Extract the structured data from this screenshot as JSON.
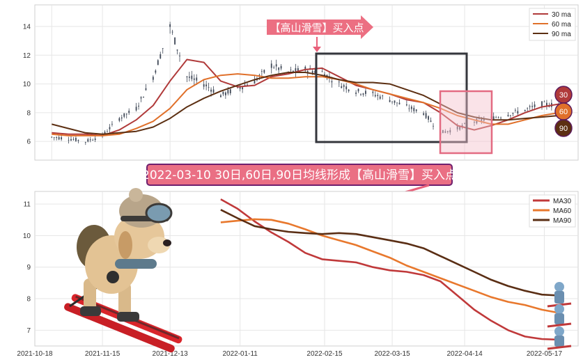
{
  "chart_data": [
    {
      "type": "line",
      "panel": "price",
      "ylim": [
        4.7,
        15.5
      ],
      "yticks": [
        6,
        8,
        10,
        12,
        14
      ],
      "grid": true,
      "legend_position": "top-right",
      "x_dates": [
        "2021-10-25",
        "2021-11-01",
        "2021-11-08",
        "2021-11-15",
        "2021-11-22",
        "2021-11-29",
        "2021-12-06",
        "2021-12-13",
        "2021-12-20",
        "2021-12-27",
        "2022-01-03",
        "2022-01-10",
        "2022-01-17",
        "2022-01-24",
        "2022-01-31",
        "2022-02-07",
        "2022-02-14",
        "2022-02-21",
        "2022-02-28",
        "2022-03-07",
        "2022-03-14",
        "2022-03-21",
        "2022-03-28",
        "2022-04-04",
        "2022-04-11",
        "2022-04-18",
        "2022-04-25",
        "2022-05-02",
        "2022-05-09",
        "2022-05-16",
        "2022-05-23"
      ],
      "close_price": [
        6.3,
        6.2,
        6.0,
        6.4,
        7.6,
        8.3,
        10.5,
        14.0,
        10.5,
        10.0,
        9.2,
        9.7,
        10.2,
        11.3,
        10.8,
        11.0,
        10.8,
        10.0,
        9.5,
        9.3,
        8.9,
        8.4,
        8.0,
        6.6,
        6.9,
        7.4,
        7.6,
        7.9,
        8.2,
        8.6,
        8.5
      ],
      "series": [
        {
          "name": "30 ma",
          "color": "#b03a3a",
          "values": [
            6.6,
            6.5,
            6.5,
            6.4,
            6.8,
            7.5,
            8.5,
            10.2,
            11.7,
            11.5,
            10.2,
            9.8,
            9.9,
            10.5,
            10.7,
            11.0,
            11.1,
            10.5,
            9.9,
            9.6,
            9.3,
            8.9,
            8.7,
            8.0,
            7.1,
            6.8,
            7.1,
            7.5,
            8.0,
            8.4,
            8.6
          ]
        },
        {
          "name": "60 ma",
          "color": "#e0702a",
          "values": [
            6.5,
            6.4,
            6.4,
            6.4,
            6.5,
            6.9,
            7.4,
            8.3,
            9.6,
            10.3,
            10.6,
            10.7,
            10.6,
            10.4,
            10.4,
            10.5,
            10.5,
            10.3,
            10.0,
            9.6,
            9.3,
            9.0,
            8.7,
            8.3,
            7.8,
            7.5,
            7.2,
            7.2,
            7.5,
            7.8,
            8.0
          ]
        },
        {
          "name": "90 ma",
          "color": "#5c2f12",
          "values": [
            7.2,
            6.9,
            6.6,
            6.5,
            6.6,
            6.7,
            7.0,
            7.6,
            8.4,
            9.0,
            9.5,
            9.9,
            10.3,
            10.6,
            10.8,
            10.8,
            10.6,
            10.3,
            10.1,
            10.1,
            10.0,
            9.6,
            9.2,
            8.6,
            8.0,
            7.7,
            7.5,
            7.5,
            7.6,
            7.7,
            7.8
          ]
        }
      ],
      "annotation": "【高山滑雪】买入点",
      "badges": [
        "30",
        "60",
        "90"
      ]
    },
    {
      "type": "line",
      "panel": "moving averages",
      "ylim": [
        6.5,
        11.4
      ],
      "yticks": [
        7,
        8,
        9,
        10,
        11
      ],
      "grid": true,
      "legend_position": "top-right",
      "xlabels": [
        "2021-10-18",
        "2021-11-15",
        "2021-12-13",
        "2022-01-11",
        "2022-02-15",
        "2022-03-15",
        "2022-04-14",
        "2022-05-17"
      ],
      "x_dates": [
        "2022-01-03",
        "2022-01-10",
        "2022-01-17",
        "2022-01-24",
        "2022-01-31",
        "2022-02-07",
        "2022-02-14",
        "2022-02-21",
        "2022-02-28",
        "2022-03-07",
        "2022-03-14",
        "2022-03-21",
        "2022-03-28",
        "2022-04-04",
        "2022-04-11",
        "2022-04-18",
        "2022-04-25",
        "2022-05-02",
        "2022-05-09",
        "2022-05-16",
        "2022-05-23"
      ],
      "series": [
        {
          "name": "MA30",
          "color": "#c0393a",
          "values": [
            11.15,
            10.85,
            10.45,
            10.1,
            9.8,
            9.45,
            9.25,
            9.2,
            9.15,
            9.0,
            8.9,
            8.85,
            8.75,
            8.55,
            8.1,
            7.65,
            7.3,
            7.0,
            6.8,
            6.72,
            6.7
          ]
        },
        {
          "name": "MA60",
          "color": "#e8782d",
          "values": [
            10.42,
            10.47,
            10.52,
            10.5,
            10.38,
            10.2,
            10.0,
            9.85,
            9.7,
            9.5,
            9.3,
            9.05,
            8.85,
            8.65,
            8.45,
            8.25,
            8.05,
            7.9,
            7.8,
            7.65,
            7.55
          ]
        },
        {
          "name": "MA90",
          "color": "#5a2e14",
          "values": [
            10.82,
            10.55,
            10.3,
            10.2,
            10.12,
            10.08,
            10.05,
            10.08,
            10.05,
            9.95,
            9.85,
            9.75,
            9.6,
            9.35,
            9.1,
            8.85,
            8.6,
            8.4,
            8.25,
            8.13,
            8.1
          ]
        }
      ]
    }
  ],
  "title": "2022-03-10 30日,60日,90日均线形成【高山滑雪】买入点"
}
